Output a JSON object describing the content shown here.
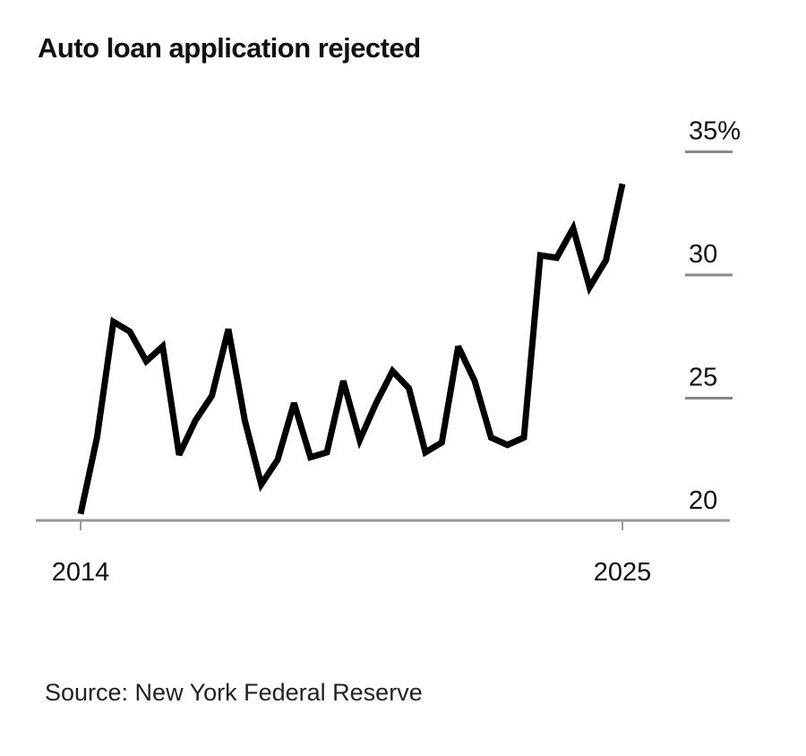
{
  "chart_data": {
    "type": "line",
    "title": "Auto loan application rejected",
    "source": "Source: New York Federal Reserve",
    "xlabel": "",
    "ylabel": "",
    "x_range": [
      2014,
      2025
    ],
    "x_ticks": [
      "2014",
      "2025"
    ],
    "ylim": [
      20,
      35
    ],
    "y_ticks": [
      {
        "value": 35,
        "label": "35%"
      },
      {
        "value": 30,
        "label": "30"
      },
      {
        "value": 25,
        "label": "25"
      },
      {
        "value": 20,
        "label": "20"
      }
    ],
    "y_axis_side": "right",
    "grid": false,
    "line_color": "#000000",
    "values": [
      20.3,
      23.4,
      28.1,
      27.7,
      26.5,
      27.1,
      22.7,
      24.1,
      25.1,
      27.8,
      24.1,
      21.5,
      22.5,
      24.8,
      22.6,
      22.8,
      25.7,
      23.3,
      24.8,
      26.1,
      25.4,
      22.8,
      23.2,
      27.1,
      25.7,
      23.4,
      23.1,
      23.4,
      30.8,
      30.7,
      31.9,
      29.5,
      30.6,
      33.7
    ]
  }
}
